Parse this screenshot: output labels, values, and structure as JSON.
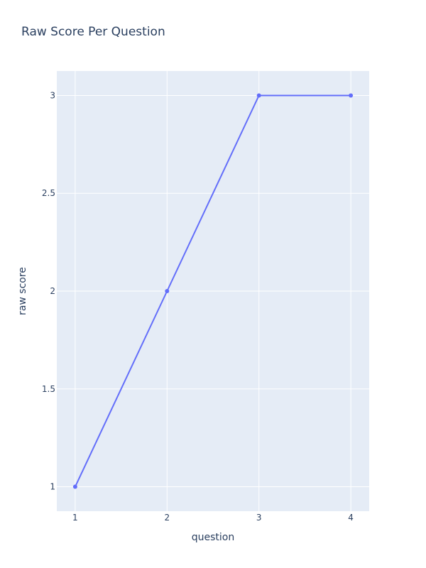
{
  "chart_data": {
    "type": "line",
    "title": "Raw Score Per Question",
    "xlabel": "question",
    "ylabel": "raw score",
    "x": [
      1,
      2,
      3,
      4
    ],
    "series": [
      {
        "values": [
          1,
          2,
          3,
          3
        ],
        "color": "#636efa"
      }
    ],
    "xlim": [
      0.8,
      4.2
    ],
    "ylim": [
      0.875,
      3.125
    ],
    "xticks": [
      1,
      2,
      3,
      4
    ],
    "xtick_labels": [
      "1",
      "2",
      "3",
      "4"
    ],
    "yticks": [
      1,
      1.5,
      2,
      2.5,
      3
    ],
    "ytick_labels": [
      "1",
      "1.5",
      "2",
      "2.5",
      "3"
    ],
    "grid": true,
    "plot_background": "#e5ecf6",
    "grid_color": "#ffffff"
  }
}
